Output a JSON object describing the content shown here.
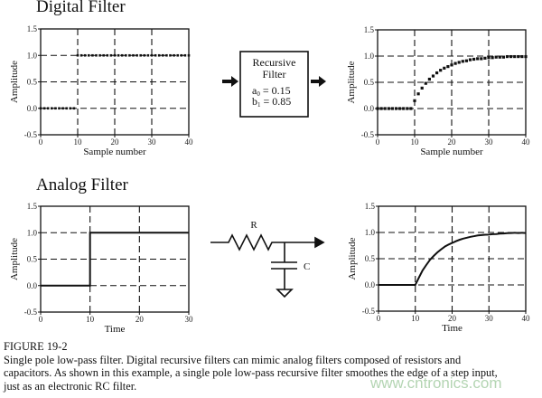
{
  "sections": {
    "digital_title": "Digital Filter",
    "analog_title": "Analog Filter"
  },
  "recursive_box": {
    "line1": "Recursive",
    "line2": "Filter",
    "a0_label": "a",
    "a0_sub": "0",
    "a0_value": "= 0.15",
    "b1_label": "b",
    "b1_sub": "1",
    "b1_value": "= 0.85"
  },
  "circuit": {
    "resistor_label": "R",
    "capacitor_label": "C"
  },
  "caption": {
    "figure": "FIGURE 19-2",
    "lines": [
      "Single pole low-pass filter.  Digital recursive filters can mimic analog filters composed of resistors and",
      "capacitors.  As shown in this example, a single pole low-pass recursive filter smoothes the edge of a step input,",
      "just as an electronic RC filter."
    ]
  },
  "watermark": "www.cntronics.com",
  "chart_data": [
    {
      "type": "scatter",
      "id": "digital-input",
      "xlabel": "Sample number",
      "ylabel": "Amplitude",
      "xlim": [
        0,
        40
      ],
      "ylim": [
        -0.5,
        1.5
      ],
      "xticks": [
        "0",
        "10",
        "20",
        "30",
        "40"
      ],
      "yticks": [
        "1.5",
        "1.0",
        "0.5",
        "0.0",
        "-0.5"
      ],
      "grid": true,
      "x": [
        0,
        1,
        2,
        3,
        4,
        5,
        6,
        7,
        8,
        9,
        10,
        11,
        12,
        13,
        14,
        15,
        16,
        17,
        18,
        19,
        20,
        21,
        22,
        23,
        24,
        25,
        26,
        27,
        28,
        29,
        30,
        31,
        32,
        33,
        34,
        35,
        36,
        37,
        38,
        39,
        40
      ],
      "y": [
        0,
        0,
        0,
        0,
        0,
        0,
        0,
        0,
        0,
        0,
        1,
        1,
        1,
        1,
        1,
        1,
        1,
        1,
        1,
        1,
        1,
        1,
        1,
        1,
        1,
        1,
        1,
        1,
        1,
        1,
        1,
        1,
        1,
        1,
        1,
        1,
        1,
        1,
        1,
        1,
        1
      ]
    },
    {
      "type": "scatter",
      "id": "digital-output",
      "xlabel": "Sample number",
      "ylabel": "Amplitude",
      "xlim": [
        0,
        40
      ],
      "ylim": [
        -0.5,
        1.5
      ],
      "xticks": [
        "0",
        "10",
        "20",
        "30",
        "40"
      ],
      "yticks": [
        "1.5",
        "1.0",
        "0.5",
        "0.0",
        "-0.5"
      ],
      "grid": true,
      "x": [
        0,
        1,
        2,
        3,
        4,
        5,
        6,
        7,
        8,
        9,
        10,
        11,
        12,
        13,
        14,
        15,
        16,
        17,
        18,
        19,
        20,
        21,
        22,
        23,
        24,
        25,
        26,
        27,
        28,
        29,
        30,
        31,
        32,
        33,
        34,
        35,
        36,
        37,
        38,
        39,
        40
      ],
      "y": [
        0,
        0,
        0,
        0,
        0,
        0,
        0,
        0,
        0,
        0,
        0.15,
        0.28,
        0.39,
        0.48,
        0.56,
        0.62,
        0.68,
        0.73,
        0.77,
        0.8,
        0.83,
        0.86,
        0.88,
        0.9,
        0.91,
        0.93,
        0.94,
        0.95,
        0.95,
        0.96,
        0.97,
        0.97,
        0.98,
        0.98,
        0.98,
        0.99,
        0.99,
        0.99,
        0.99,
        0.99,
        0.99
      ]
    },
    {
      "type": "line",
      "id": "analog-input",
      "xlabel": "Time",
      "ylabel": "Amplitude",
      "xlim": [
        0,
        30
      ],
      "ylim": [
        -0.5,
        1.5
      ],
      "xticks": [
        "0",
        "10",
        "20",
        "30"
      ],
      "yticks": [
        "1.5",
        "1.0",
        "0.5",
        "0.0",
        "-0.5"
      ],
      "grid": true,
      "x": [
        0,
        10,
        10,
        30
      ],
      "y": [
        0,
        0,
        1,
        1
      ]
    },
    {
      "type": "line",
      "id": "analog-output",
      "xlabel": "Time",
      "ylabel": "Amplitude",
      "xlim": [
        0,
        40
      ],
      "ylim": [
        -0.5,
        1.5
      ],
      "xticks": [
        "0",
        "10",
        "20",
        "30",
        "40"
      ],
      "yticks": [
        "1.5",
        "1.0",
        "0.5",
        "0.0",
        "-0.5"
      ],
      "grid": true,
      "x": [
        0,
        10,
        12,
        14,
        16,
        18,
        20,
        22,
        24,
        26,
        28,
        30,
        32,
        34,
        36,
        38,
        40
      ],
      "y": [
        0,
        0,
        0.28,
        0.48,
        0.62,
        0.73,
        0.8,
        0.86,
        0.9,
        0.93,
        0.95,
        0.96,
        0.97,
        0.98,
        0.99,
        0.99,
        0.99
      ]
    }
  ]
}
